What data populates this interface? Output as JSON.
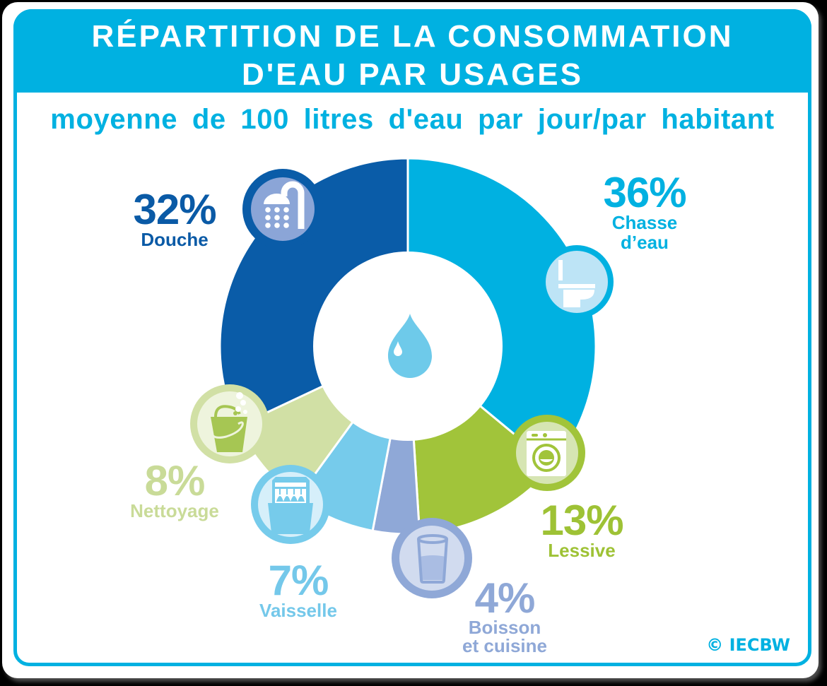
{
  "header": {
    "title_lines": [
      "RÉPARTITION DE LA CONSOMMATION",
      "D'EAU PAR USAGES"
    ]
  },
  "subtitle": "moyenne de 100 litres d'eau par jour/par habitant",
  "labels": [
    {
      "pct": "36%",
      "lines": [
        "Chasse",
        "d’eau"
      ]
    },
    {
      "pct": "13%",
      "lines": [
        "Lessive"
      ]
    },
    {
      "pct": "4%",
      "lines": [
        "Boisson",
        "et cuisine"
      ]
    },
    {
      "pct": "7%",
      "lines": [
        "Vaisselle"
      ]
    },
    {
      "pct": "8%",
      "lines": [
        "Nettoyage"
      ]
    },
    {
      "pct": "32%",
      "lines": [
        "Douche"
      ]
    }
  ],
  "icons": {
    "center": "water-drop-icon",
    "chasse": "toilet-icon",
    "lessive": "washing-machine-icon",
    "boisson": "glass-icon",
    "vaisselle": "dishwasher-icon",
    "nettoyage": "bucket-icon",
    "douche": "shower-icon"
  },
  "footer": {
    "copyright": "© IECBW"
  },
  "chart_data": {
    "type": "pie",
    "donut": true,
    "title": "RÉPARTITION DE LA CONSOMMATION D'EAU PAR USAGES",
    "subtitle": "moyenne de 100 litres d'eau par jour/par habitant",
    "categories": [
      "Chasse d'eau",
      "Lessive",
      "Boisson et cuisine",
      "Vaisselle",
      "Nettoyage",
      "Douche"
    ],
    "values": [
      36,
      13,
      4,
      7,
      8,
      32
    ],
    "unit": "%",
    "start_angle_deg": 0,
    "direction": "clockwise",
    "colors": [
      "#00b1e1",
      "#a1c43a",
      "#8fa8d7",
      "#76cbeb",
      "#d1e0a5",
      "#0a5ca8"
    ],
    "legend": "none (direct labels)",
    "source_note": "© IECBW"
  }
}
